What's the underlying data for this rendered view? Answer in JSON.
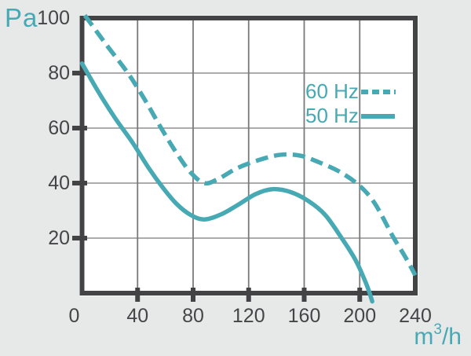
{
  "labels": {
    "y_unit": "Pa",
    "x_unit_base": "m",
    "x_unit_exponent": "3",
    "x_unit_suffix": "/h"
  },
  "legend": [
    {
      "label": "60 Hz",
      "style": "dashed"
    },
    {
      "label": "50 Hz",
      "style": "solid"
    }
  ],
  "colors": {
    "curve": "#46A9B3",
    "plot_background": "#FFFFFF",
    "page_background": "#E7E9E9",
    "axis": "#434345",
    "grid": "#7A7A7A"
  },
  "chart_data": {
    "type": "line",
    "title": "",
    "xlabel": "m3/h",
    "ylabel": "Pa",
    "xlim": [
      0,
      240
    ],
    "ylim": [
      0,
      100
    ],
    "xticks": [
      0,
      40,
      80,
      120,
      160,
      200,
      240
    ],
    "yticks": [
      20,
      40,
      60,
      80,
      100
    ],
    "grid": true,
    "legend_position": "inside upper right",
    "series": [
      {
        "name": "60 Hz",
        "line_style": "dashed",
        "color": "#46A9B3",
        "points": [
          [
            2,
            101
          ],
          [
            18,
            90
          ],
          [
            33,
            80
          ],
          [
            45,
            70.5
          ],
          [
            57,
            60
          ],
          [
            68,
            51
          ],
          [
            78,
            44
          ],
          [
            88,
            40
          ],
          [
            98,
            41.5
          ],
          [
            112,
            45.5
          ],
          [
            128,
            48.5
          ],
          [
            143,
            50.3
          ],
          [
            157,
            50
          ],
          [
            171,
            47.5
          ],
          [
            186,
            44
          ],
          [
            200,
            39
          ],
          [
            211,
            32.5
          ],
          [
            224,
            20.5
          ],
          [
            233,
            13
          ],
          [
            240,
            6.5
          ]
        ]
      },
      {
        "name": "50 Hz",
        "line_style": "solid",
        "color": "#46A9B3",
        "points": [
          [
            0,
            83.5
          ],
          [
            12,
            73
          ],
          [
            24,
            63.5
          ],
          [
            36,
            55
          ],
          [
            48,
            45.5
          ],
          [
            58,
            38.5
          ],
          [
            68,
            32.5
          ],
          [
            78,
            28.5
          ],
          [
            88,
            26.8
          ],
          [
            100,
            28.6
          ],
          [
            112,
            32
          ],
          [
            125,
            36
          ],
          [
            137,
            37.8
          ],
          [
            150,
            36.8
          ],
          [
            163,
            33.5
          ],
          [
            175,
            28.5
          ],
          [
            187,
            20
          ],
          [
            197,
            12
          ],
          [
            205,
            3
          ],
          [
            209,
            -3
          ]
        ]
      }
    ]
  }
}
